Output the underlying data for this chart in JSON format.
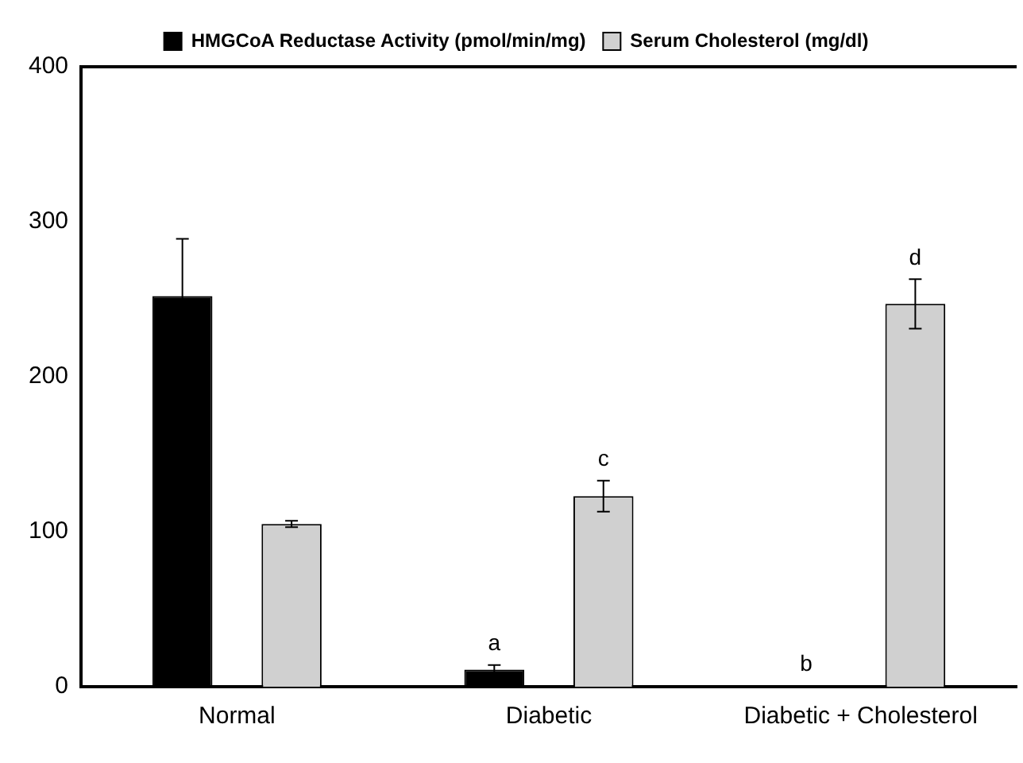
{
  "chart_data": {
    "type": "bar",
    "categories": [
      "Normal",
      "Diabetic",
      "Diabetic + Cholesterol"
    ],
    "series": [
      {
        "name": "HMGCoA Reductase Activity (pmol/min/mg)",
        "color": "#000000",
        "values": [
          252,
          11,
          1
        ],
        "errors": [
          37,
          3,
          null
        ],
        "value_labels": [
          null,
          "a",
          "b"
        ]
      },
      {
        "name": "Serum Cholesterol (mg/dl)",
        "color": "#d0d0d0",
        "values": [
          105,
          123,
          247
        ],
        "errors": [
          2,
          10,
          16
        ],
        "value_labels": [
          null,
          "c",
          "d"
        ]
      }
    ],
    "ylim": [
      0,
      400
    ],
    "yticks": [
      0,
      100,
      200,
      300,
      400
    ],
    "grid": false,
    "legend": "top"
  }
}
